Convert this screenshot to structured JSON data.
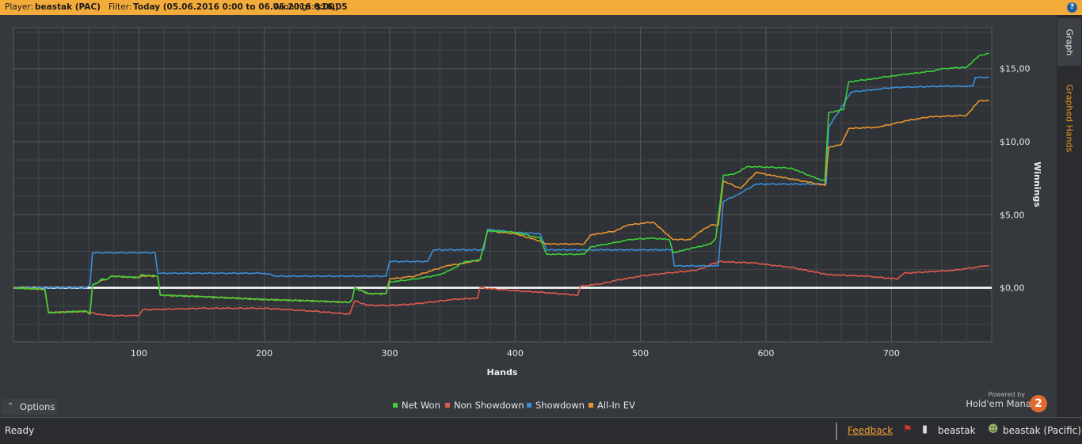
{
  "topbar": {
    "player_label": "Player:",
    "player_value": "beastak (PAC)",
    "filter_label": "Filter:",
    "filter_value": "Today (05.06.2016 0:00 to 06.06.2016 0:00)",
    "winnings_label": "Winnings:",
    "winnings_value": "$16,05",
    "help": "?"
  },
  "side_tabs": [
    "Graph",
    "Graphed Hands"
  ],
  "chart_data": {
    "type": "line",
    "xlabel": "Hands",
    "ylabel": "Winnings",
    "x_ticks": [
      100,
      200,
      300,
      400,
      500,
      600,
      700
    ],
    "y_ticks": [
      "$0,00",
      "$5,00",
      "$10,00",
      "$15,00"
    ],
    "y_tick_values": [
      0,
      5,
      10,
      15
    ],
    "xlim": [
      0,
      780
    ],
    "ylim": [
      -3.7,
      17.8
    ],
    "grid": true,
    "legend_position": "bottom-center",
    "series": [
      {
        "name": "Net Won",
        "color": "#3ad13a",
        "points": [
          [
            0,
            0
          ],
          [
            25,
            -0.1
          ],
          [
            28,
            -1.7
          ],
          [
            58,
            -1.6
          ],
          [
            61,
            -1.8
          ],
          [
            63,
            0.2
          ],
          [
            68,
            0.4
          ],
          [
            70,
            0.6
          ],
          [
            75,
            0.6
          ],
          [
            78,
            0.8
          ],
          [
            100,
            0.7
          ],
          [
            102,
            0.9
          ],
          [
            115,
            0.8
          ],
          [
            117,
            -0.5
          ],
          [
            150,
            -0.6
          ],
          [
            200,
            -0.8
          ],
          [
            240,
            -0.9
          ],
          [
            268,
            -1.0
          ],
          [
            270,
            -0.8
          ],
          [
            272,
            0.0
          ],
          [
            283,
            -0.4
          ],
          [
            297,
            -0.4
          ],
          [
            300,
            0.4
          ],
          [
            320,
            0.6
          ],
          [
            340,
            0.9
          ],
          [
            350,
            1.3
          ],
          [
            360,
            1.8
          ],
          [
            372,
            1.9
          ],
          [
            378,
            3.9
          ],
          [
            400,
            3.8
          ],
          [
            420,
            3.4
          ],
          [
            425,
            2.3
          ],
          [
            455,
            2.3
          ],
          [
            460,
            2.8
          ],
          [
            480,
            3.1
          ],
          [
            490,
            3.3
          ],
          [
            510,
            3.4
          ],
          [
            523,
            3.3
          ],
          [
            526,
            2.4
          ],
          [
            535,
            2.6
          ],
          [
            545,
            2.8
          ],
          [
            556,
            3.0
          ],
          [
            560,
            3.4
          ],
          [
            566,
            7.7
          ],
          [
            575,
            7.8
          ],
          [
            585,
            8.3
          ],
          [
            620,
            8.2
          ],
          [
            640,
            7.5
          ],
          [
            647,
            7.3
          ],
          [
            650,
            12.0
          ],
          [
            662,
            12.2
          ],
          [
            666,
            14.1
          ],
          [
            685,
            14.3
          ],
          [
            700,
            14.5
          ],
          [
            730,
            14.8
          ],
          [
            742,
            15.0
          ],
          [
            760,
            15.1
          ],
          [
            770,
            15.9
          ],
          [
            778,
            16.05
          ]
        ]
      },
      {
        "name": "Non Showdown",
        "color": "#e25b4c",
        "points": [
          [
            0,
            0
          ],
          [
            25,
            -0.1
          ],
          [
            28,
            -1.7
          ],
          [
            58,
            -1.6
          ],
          [
            61,
            -1.7
          ],
          [
            75,
            -1.9
          ],
          [
            100,
            -1.9
          ],
          [
            103,
            -1.5
          ],
          [
            150,
            -1.4
          ],
          [
            200,
            -1.4
          ],
          [
            240,
            -1.6
          ],
          [
            268,
            -1.8
          ],
          [
            272,
            -0.9
          ],
          [
            283,
            -1.2
          ],
          [
            300,
            -1.2
          ],
          [
            320,
            -1.1
          ],
          [
            350,
            -0.8
          ],
          [
            370,
            -0.7
          ],
          [
            372,
            0.0
          ],
          [
            400,
            -0.2
          ],
          [
            420,
            -0.3
          ],
          [
            450,
            -0.5
          ],
          [
            452,
            0.1
          ],
          [
            470,
            0.3
          ],
          [
            480,
            0.5
          ],
          [
            500,
            0.8
          ],
          [
            520,
            1.0
          ],
          [
            545,
            1.2
          ],
          [
            562,
            1.8
          ],
          [
            590,
            1.7
          ],
          [
            620,
            1.4
          ],
          [
            650,
            0.9
          ],
          [
            680,
            0.8
          ],
          [
            705,
            0.6
          ],
          [
            710,
            1.0
          ],
          [
            750,
            1.2
          ],
          [
            775,
            1.5
          ],
          [
            778,
            1.5
          ]
        ]
      },
      {
        "name": "Showdown",
        "color": "#3a8fd9",
        "points": [
          [
            0,
            0
          ],
          [
            58,
            0
          ],
          [
            61,
            0.2
          ],
          [
            63,
            2.4
          ],
          [
            113,
            2.4
          ],
          [
            115,
            1.0
          ],
          [
            200,
            1.0
          ],
          [
            210,
            0.8
          ],
          [
            297,
            0.8
          ],
          [
            300,
            1.8
          ],
          [
            330,
            1.8
          ],
          [
            335,
            2.6
          ],
          [
            375,
            2.6
          ],
          [
            378,
            4.0
          ],
          [
            400,
            3.8
          ],
          [
            420,
            3.7
          ],
          [
            425,
            2.6
          ],
          [
            455,
            2.6
          ],
          [
            470,
            2.6
          ],
          [
            525,
            2.6
          ],
          [
            527,
            1.5
          ],
          [
            562,
            1.5
          ],
          [
            566,
            5.9
          ],
          [
            580,
            6.5
          ],
          [
            592,
            7.1
          ],
          [
            648,
            7.1
          ],
          [
            650,
            11.0
          ],
          [
            668,
            13.4
          ],
          [
            690,
            13.6
          ],
          [
            700,
            13.7
          ],
          [
            740,
            13.8
          ],
          [
            765,
            13.8
          ],
          [
            767,
            14.4
          ],
          [
            778,
            14.4
          ]
        ]
      },
      {
        "name": "All-In EV",
        "color": "#e8952f",
        "points": [
          [
            0,
            0
          ],
          [
            25,
            -0.1
          ],
          [
            28,
            -1.7
          ],
          [
            58,
            -1.6
          ],
          [
            61,
            -1.8
          ],
          [
            63,
            0.2
          ],
          [
            68,
            0.4
          ],
          [
            70,
            0.5
          ],
          [
            75,
            0.6
          ],
          [
            78,
            0.8
          ],
          [
            100,
            0.7
          ],
          [
            102,
            0.8
          ],
          [
            115,
            0.8
          ],
          [
            117,
            -0.5
          ],
          [
            150,
            -0.6
          ],
          [
            200,
            -0.8
          ],
          [
            240,
            -0.9
          ],
          [
            268,
            -1.0
          ],
          [
            270,
            -0.8
          ],
          [
            272,
            0.0
          ],
          [
            283,
            -0.4
          ],
          [
            297,
            -0.4
          ],
          [
            300,
            0.6
          ],
          [
            320,
            0.8
          ],
          [
            345,
            1.5
          ],
          [
            360,
            1.7
          ],
          [
            372,
            1.9
          ],
          [
            378,
            3.9
          ],
          [
            400,
            3.7
          ],
          [
            420,
            3.2
          ],
          [
            425,
            3.0
          ],
          [
            455,
            3.0
          ],
          [
            460,
            3.6
          ],
          [
            480,
            3.9
          ],
          [
            490,
            4.3
          ],
          [
            510,
            4.5
          ],
          [
            526,
            3.3
          ],
          [
            540,
            3.3
          ],
          [
            545,
            3.7
          ],
          [
            556,
            4.3
          ],
          [
            562,
            4.3
          ],
          [
            566,
            7.3
          ],
          [
            580,
            6.8
          ],
          [
            592,
            7.9
          ],
          [
            610,
            7.6
          ],
          [
            630,
            7.3
          ],
          [
            647,
            7.0
          ],
          [
            650,
            9.6
          ],
          [
            660,
            9.8
          ],
          [
            666,
            10.9
          ],
          [
            690,
            11.0
          ],
          [
            710,
            11.4
          ],
          [
            730,
            11.7
          ],
          [
            760,
            11.8
          ],
          [
            770,
            12.8
          ],
          [
            778,
            12.8
          ]
        ]
      }
    ],
    "zero_line": true
  },
  "options_label": "Options",
  "legend": [
    {
      "label": "Net Won",
      "color": "#3ad13a"
    },
    {
      "label": "Non Showdown",
      "color": "#e25b4c"
    },
    {
      "label": "Showdown",
      "color": "#3a8fd9"
    },
    {
      "label": "All-In EV",
      "color": "#e8952f"
    }
  ],
  "brand": {
    "powered": "Powered by",
    "name": "Hold'em Manager",
    "version": "2"
  },
  "status": {
    "ready": "Ready",
    "feedback": "Feedback",
    "user": "beastak",
    "site_user": "beastak (Pacific)"
  }
}
